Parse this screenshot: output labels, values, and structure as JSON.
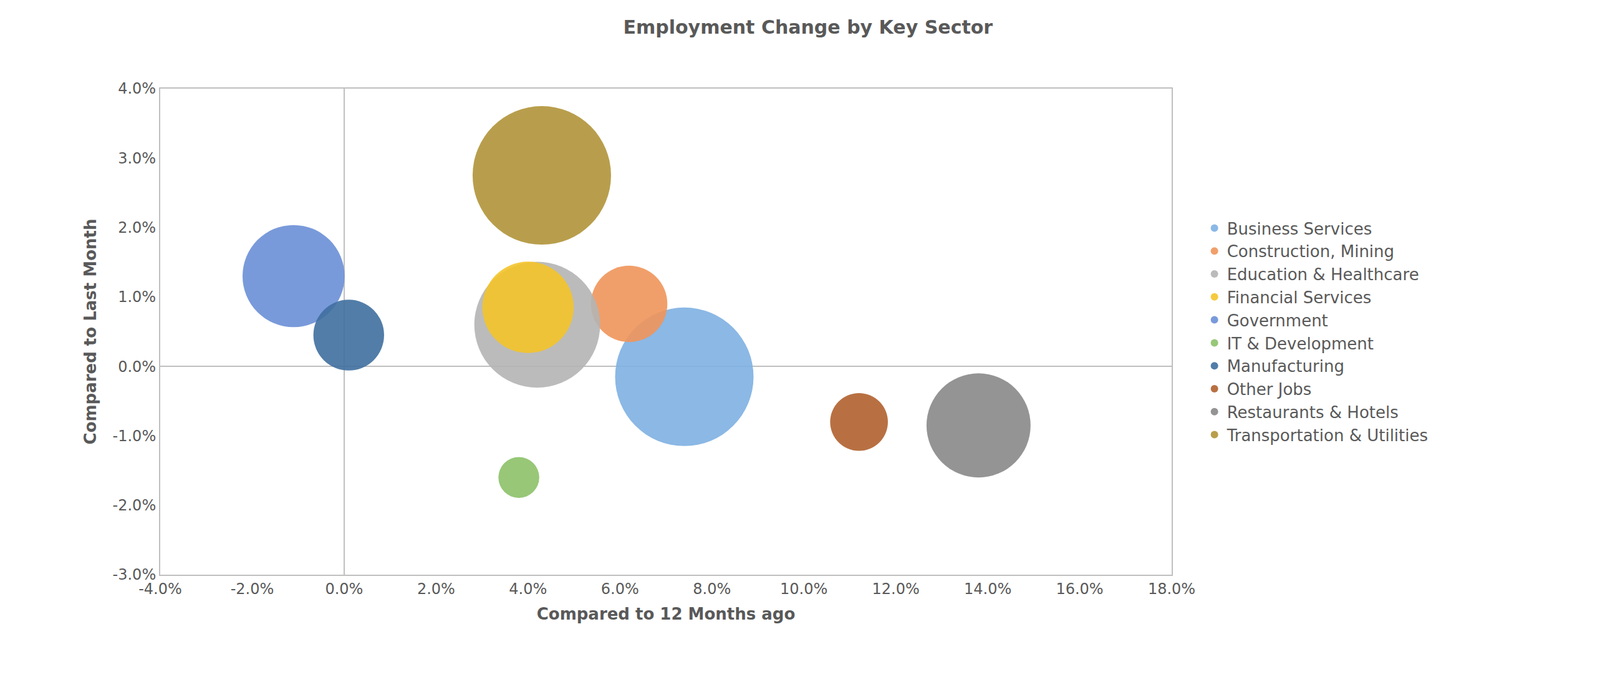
{
  "chart_data": {
    "type": "bubble",
    "title": "Employment Change by Key Sector",
    "xlabel": "Compared to 12 Months ago",
    "ylabel": "Compared to Last Month",
    "xlim": [
      -4,
      18
    ],
    "ylim": [
      -3,
      4
    ],
    "xticks": [
      {
        "value": -4,
        "label": "-4.0%"
      },
      {
        "value": -2,
        "label": "-2.0%"
      },
      {
        "value": 0,
        "label": "0.0%"
      },
      {
        "value": 2,
        "label": "2.0%"
      },
      {
        "value": 4,
        "label": "4.0%"
      },
      {
        "value": 6,
        "label": "6.0%"
      },
      {
        "value": 8,
        "label": "8.0%"
      },
      {
        "value": 10,
        "label": "10.0%"
      },
      {
        "value": 12,
        "label": "12.0%"
      },
      {
        "value": 14,
        "label": "14.0%"
      },
      {
        "value": 16,
        "label": "16.0%"
      },
      {
        "value": 18,
        "label": "18.0%"
      }
    ],
    "yticks": [
      {
        "value": -3,
        "label": "-3.0%"
      },
      {
        "value": -2,
        "label": "-2.0%"
      },
      {
        "value": -1,
        "label": "-1.0%"
      },
      {
        "value": 0,
        "label": "0.0%"
      },
      {
        "value": 1,
        "label": "1.0%"
      },
      {
        "value": 2,
        "label": "2.0%"
      },
      {
        "value": 3,
        "label": "3.0%"
      },
      {
        "value": 4,
        "label": "4.0%"
      }
    ],
    "grid": false,
    "legend": "right",
    "series": [
      {
        "name": "Business Services",
        "color": "#7eb0e2",
        "x": [
          7.4
        ],
        "y": [
          -0.15
        ],
        "sizes": [
          46
        ]
      },
      {
        "name": "Construction, Mining",
        "color": "#f0955a",
        "x": [
          6.2
        ],
        "y": [
          0.9
        ],
        "sizes": [
          14
        ]
      },
      {
        "name": "Education & Healthcare",
        "color": "#b4b4b4",
        "x": [
          4.2
        ],
        "y": [
          0.6
        ],
        "sizes": [
          38
        ]
      },
      {
        "name": "Financial Services",
        "color": "#f4c42a",
        "x": [
          4.0
        ],
        "y": [
          0.85
        ],
        "sizes": [
          20
        ]
      },
      {
        "name": "Government",
        "color": "#6a8fd6",
        "x": [
          -1.1
        ],
        "y": [
          1.3
        ],
        "sizes": [
          25
        ]
      },
      {
        "name": "IT & Development",
        "color": "#8cc168",
        "x": [
          3.8
        ],
        "y": [
          -1.6
        ],
        "sizes": [
          4
        ]
      },
      {
        "name": "Manufacturing",
        "color": "#3f6f9f",
        "x": [
          0.1
        ],
        "y": [
          0.45
        ],
        "sizes": [
          12
        ]
      },
      {
        "name": "Other Jobs",
        "color": "#b0602e",
        "x": [
          11.2
        ],
        "y": [
          -0.8
        ],
        "sizes": [
          8
        ]
      },
      {
        "name": "Restaurants & Hotels",
        "color": "#888888",
        "x": [
          13.8
        ],
        "y": [
          -0.85
        ],
        "sizes": [
          26
        ]
      },
      {
        "name": "Transportation & Utilities",
        "color": "#b09338",
        "x": [
          4.3
        ],
        "y": [
          2.75
        ],
        "sizes": [
          46
        ]
      }
    ]
  }
}
